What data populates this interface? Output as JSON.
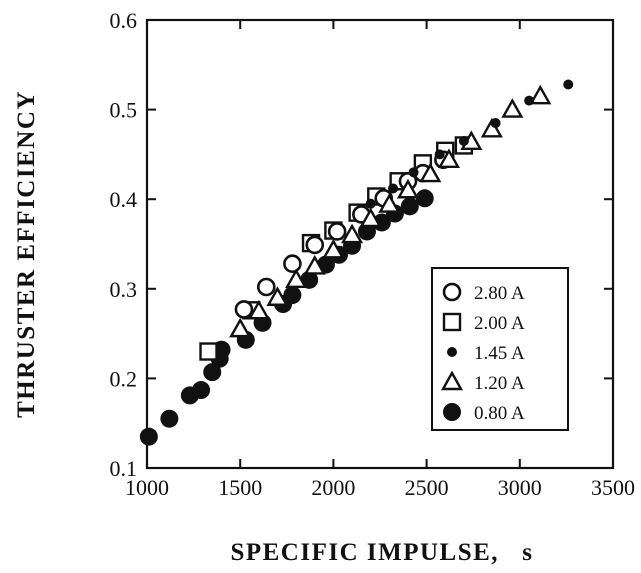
{
  "chart_data": {
    "type": "scatter",
    "xlabel": "SPECIFIC IMPULSE,   s",
    "ylabel": "THRUSTER EFFICIENCY",
    "xlim": [
      1000,
      3500
    ],
    "ylim": [
      0.1,
      0.6
    ],
    "xticks": [
      1000,
      1500,
      2000,
      2500,
      3000,
      3500
    ],
    "yticks": [
      0.1,
      0.2,
      0.3,
      0.4,
      0.5,
      0.6
    ],
    "xtick_labels": [
      "1000",
      "1500",
      "2000",
      "2500",
      "3000",
      "3500"
    ],
    "ytick_labels": [
      "0.1",
      "0.2",
      "0.3",
      "0.4",
      "0.5",
      "0.6"
    ],
    "grid": false,
    "legend_position": "lower-right",
    "series": [
      {
        "name": "2.80 A",
        "marker": "open-circle",
        "x": [
          1520,
          1640,
          1780,
          1900,
          2020,
          2150,
          2270,
          2400,
          2480,
          2590
        ],
        "y": [
          0.277,
          0.302,
          0.328,
          0.349,
          0.364,
          0.383,
          0.401,
          0.42,
          0.429,
          0.444
        ]
      },
      {
        "name": "2.00 A",
        "marker": "open-square",
        "x": [
          1330,
          1560,
          1880,
          2000,
          2130,
          2230,
          2350,
          2480,
          2600,
          2700
        ],
        "y": [
          0.23,
          0.276,
          0.351,
          0.365,
          0.385,
          0.403,
          0.42,
          0.44,
          0.454,
          0.46
        ]
      },
      {
        "name": "1.45 A",
        "marker": "small-filled-circle",
        "x": [
          2200,
          2320,
          2430,
          2570,
          2700,
          2870,
          3050,
          3260
        ],
        "y": [
          0.395,
          0.412,
          0.43,
          0.45,
          0.465,
          0.485,
          0.51,
          0.528
        ]
      },
      {
        "name": "1.20 A",
        "marker": "open-triangle",
        "x": [
          1500,
          1600,
          1700,
          1800,
          1900,
          2000,
          2100,
          2200,
          2300,
          2400,
          2520,
          2620,
          2740,
          2850,
          2960,
          3110
        ],
        "y": [
          0.255,
          0.275,
          0.29,
          0.31,
          0.325,
          0.343,
          0.36,
          0.378,
          0.394,
          0.41,
          0.428,
          0.444,
          0.464,
          0.478,
          0.5,
          0.515
        ]
      },
      {
        "name": "0.80 A",
        "marker": "filled-circle",
        "x": [
          1010,
          1120,
          1230,
          1290,
          1350,
          1390,
          1400,
          1530,
          1620,
          1730,
          1780,
          1870,
          1960,
          2030,
          2100,
          2180,
          2260,
          2330,
          2410,
          2490
        ],
        "y": [
          0.135,
          0.155,
          0.181,
          0.187,
          0.207,
          0.222,
          0.232,
          0.243,
          0.262,
          0.283,
          0.293,
          0.31,
          0.327,
          0.338,
          0.348,
          0.364,
          0.374,
          0.384,
          0.392,
          0.401
        ]
      }
    ]
  }
}
